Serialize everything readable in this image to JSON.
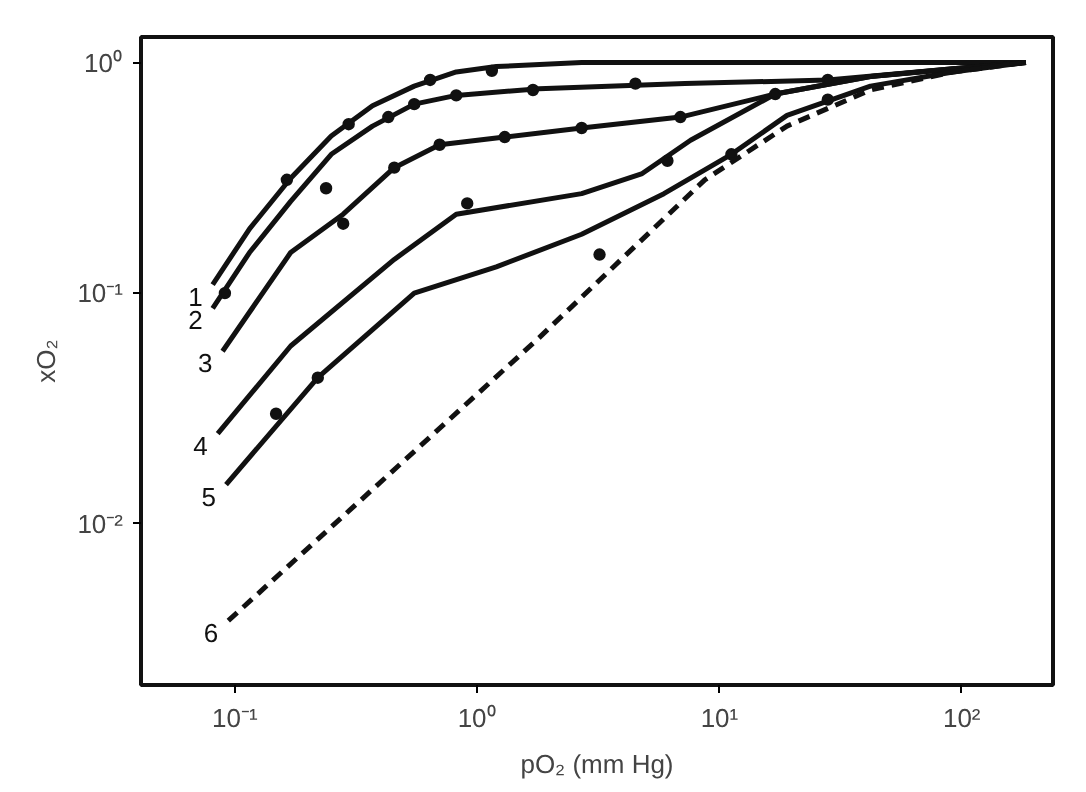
{
  "chart_data": {
    "type": "line",
    "xlabel": "pO₂ (mm Hg)",
    "ylabel": "xO₂",
    "log": "xy",
    "marker": "none",
    "xlim": [
      0.041,
      238
    ],
    "ylim": [
      0.002,
      1.29
    ],
    "xticks": [
      {
        "value": 0.1,
        "label": "10⁻¹"
      },
      {
        "value": 1,
        "label": "10⁰"
      },
      {
        "value": 10,
        "label": "10¹"
      },
      {
        "value": 100,
        "label": "10²"
      }
    ],
    "yticks": [
      {
        "value": 0.01,
        "label": "10⁻²"
      },
      {
        "value": 0.1,
        "label": "10⁻¹"
      },
      {
        "value": 1,
        "label": "10⁰"
      }
    ],
    "series": [
      {
        "name": "1",
        "color": "#111111",
        "line_style": "solid",
        "x": [
          0.081,
          0.115,
          0.17,
          0.25,
          0.37,
          0.55,
          0.82,
          1.2,
          2.7,
          184
        ],
        "values": [
          0.109,
          0.19,
          0.315,
          0.48,
          0.65,
          0.79,
          0.91,
          0.96,
          1.0,
          1.0
        ]
      },
      {
        "name": "2",
        "color": "#111111",
        "line_style": "solid",
        "x": [
          0.081,
          0.115,
          0.17,
          0.25,
          0.37,
          0.55,
          0.82,
          1.8,
          7.2,
          28,
          92,
          184
        ],
        "values": [
          0.086,
          0.15,
          0.25,
          0.4,
          0.53,
          0.66,
          0.72,
          0.77,
          0.81,
          0.84,
          0.94,
          1.0
        ]
      },
      {
        "name": "3",
        "color": "#111111",
        "line_style": "solid",
        "x": [
          0.089,
          0.17,
          0.28,
          0.455,
          0.7,
          1.3,
          2.7,
          6.9,
          17,
          42,
          92,
          184
        ],
        "values": [
          0.056,
          0.15,
          0.22,
          0.35,
          0.44,
          0.475,
          0.52,
          0.58,
          0.73,
          0.87,
          0.94,
          1.0
        ]
      },
      {
        "name": "4",
        "color": "#111111",
        "line_style": "solid",
        "x": [
          0.085,
          0.17,
          0.455,
          0.82,
          2.7,
          4.8,
          7.6,
          17,
          42,
          184
        ],
        "values": [
          0.0246,
          0.059,
          0.14,
          0.22,
          0.27,
          0.33,
          0.46,
          0.73,
          0.87,
          1.0
        ]
      },
      {
        "name": "5",
        "color": "#111111",
        "line_style": "solid",
        "x": [
          0.092,
          0.22,
          0.55,
          1.2,
          2.7,
          5.9,
          11.2,
          19,
          42,
          92,
          184
        ],
        "values": [
          0.0148,
          0.043,
          0.1,
          0.13,
          0.18,
          0.27,
          0.4,
          0.59,
          0.79,
          0.91,
          1.0
        ]
      },
      {
        "name": "6",
        "color": "#111111",
        "line_style": "dashed",
        "x": [
          0.094,
          1.8,
          8.7,
          19,
          42,
          92,
          184
        ],
        "values": [
          0.0038,
          0.064,
          0.31,
          0.53,
          0.76,
          0.91,
          1.0
        ]
      },
      {
        "type": "scatter",
        "marker": "circle",
        "color": "#111111",
        "x": [
          0.091,
          0.164,
          0.295,
          0.64,
          1.15,
          0.28,
          0.455,
          0.7,
          1.3,
          2.7,
          6.9,
          17,
          28
        ],
        "values": [
          0.1,
          0.31,
          0.54,
          0.84,
          0.92,
          0.2,
          0.35,
          0.44,
          0.475,
          0.52,
          0.58,
          0.73,
          0.84
        ]
      },
      {
        "type": "scatter",
        "marker": "circle",
        "color": "#111111",
        "x": [
          0.238,
          0.43,
          0.55,
          0.82,
          1.7,
          4.5,
          0.91,
          6.1,
          3.2,
          0.148,
          0.22,
          11.2,
          28
        ],
        "values": [
          0.285,
          0.58,
          0.66,
          0.72,
          0.76,
          0.81,
          0.245,
          0.375,
          0.147,
          0.03,
          0.043,
          0.4,
          0.69
        ]
      }
    ]
  }
}
